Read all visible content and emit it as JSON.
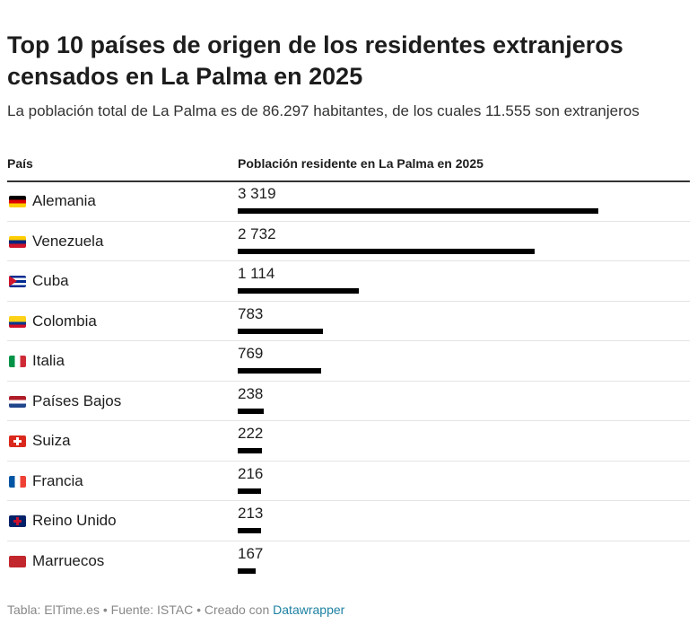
{
  "title": "Top 10 países de origen de los residentes extranjeros censados en La Palma en 2025",
  "subtitle": "La población total de La Palma es de 86.297 habitantes, de los cuales 11.555 son extranjeros",
  "chart_data": {
    "type": "table",
    "columns": [
      "País",
      "Población residente en La Palma en 2025"
    ],
    "rows": [
      {
        "country": "Alemania",
        "value": 3319,
        "label": "3 319",
        "flag": [
          "#000000",
          "#dd0000",
          "#ffce00"
        ],
        "flag_dir": "h"
      },
      {
        "country": "Venezuela",
        "value": 2732,
        "label": "2 732",
        "flag": [
          "#ffcc00",
          "#00247d",
          "#cf142b"
        ],
        "flag_dir": "h"
      },
      {
        "country": "Cuba",
        "value": 1114,
        "label": "1 114",
        "flag": [
          "#002a8f",
          "#ffffff",
          "#002a8f",
          "#ffffff",
          "#002a8f"
        ],
        "flag_dir": "h",
        "triangle": "#cf142b"
      },
      {
        "country": "Colombia",
        "value": 783,
        "label": "783",
        "flag": [
          "#fcd116",
          "#fcd116",
          "#003893",
          "#ce1126"
        ],
        "flag_dir": "h"
      },
      {
        "country": "Italia",
        "value": 769,
        "label": "769",
        "flag": [
          "#009246",
          "#ffffff",
          "#ce2b37"
        ],
        "flag_dir": "v"
      },
      {
        "country": "Países Bajos",
        "value": 238,
        "label": "238",
        "flag": [
          "#ae1c28",
          "#ffffff",
          "#21468b"
        ],
        "flag_dir": "h"
      },
      {
        "country": "Suiza",
        "value": 222,
        "label": "222",
        "flag": [
          "#da291c"
        ],
        "flag_dir": "h",
        "cross": "#ffffff"
      },
      {
        "country": "Francia",
        "value": 216,
        "label": "216",
        "flag": [
          "#0055a4",
          "#ffffff",
          "#ef4135"
        ],
        "flag_dir": "v"
      },
      {
        "country": "Reino Unido",
        "value": 213,
        "label": "213",
        "flag": [
          "#012169"
        ],
        "flag_dir": "h",
        "cross": "#c8102e"
      },
      {
        "country": "Marruecos",
        "value": 167,
        "label": "167",
        "flag": [
          "#c1272d"
        ],
        "flag_dir": "h"
      }
    ],
    "bar_color": "#000000",
    "xlim": [
      0,
      3319
    ]
  },
  "footer": {
    "prefix": "Tabla: ElTime.es • Fuente: ISTAC • Creado con ",
    "link": "Datawrapper",
    "link_color": "#1d81a2"
  }
}
